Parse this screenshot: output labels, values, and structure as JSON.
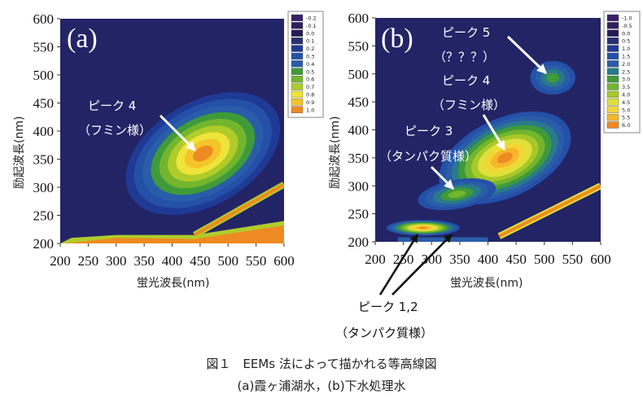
{
  "chart_data": [
    {
      "type": "heatmap",
      "panel_label": "(a)",
      "xlabel": "蛍光波長(nm)",
      "ylabel": "励起波長(nm)",
      "xlim": [
        200,
        600
      ],
      "ylim": [
        200,
        600
      ],
      "xticks": [
        "200",
        "250",
        "300",
        "350",
        "400",
        "450",
        "500",
        "550",
        "600"
      ],
      "yticks": [
        "200",
        "250",
        "300",
        "350",
        "400",
        "450",
        "500",
        "550",
        "600"
      ],
      "legend": {
        "labels": [
          "-0.2",
          "-0.1",
          "0.0",
          "0.1",
          "0.2",
          "0.3",
          "0.4",
          "0.5",
          "0.6",
          "0.7",
          "0.8",
          "0.9",
          "1.0"
        ],
        "colors": [
          "#3a1f6b",
          "#2e1f5e",
          "#231d55",
          "#28306e",
          "#1f3a95",
          "#2450a8",
          "#2a5da8",
          "#3f9a3a",
          "#74b52e",
          "#b0cc2a",
          "#efe43a",
          "#f5c42b",
          "#ee8a22"
        ]
      },
      "peaks": [
        {
          "name": "ピーク 4",
          "sub": "(フミン様)",
          "em": 455,
          "ex": 360,
          "level": 1.0
        }
      ]
    },
    {
      "type": "heatmap",
      "panel_label": "(b)",
      "xlabel": "蛍光波長(nm)",
      "ylabel": "励起波長(nm)",
      "xlim": [
        200,
        600
      ],
      "ylim": [
        200,
        600
      ],
      "xticks": [
        "200",
        "250",
        "300",
        "350",
        "400",
        "450",
        "500",
        "550",
        "600"
      ],
      "yticks": [
        "200",
        "250",
        "300",
        "350",
        "400",
        "450",
        "500",
        "550",
        "600"
      ],
      "legend": {
        "labels": [
          "-1.0",
          "-0.5",
          "0.0",
          "0.5",
          "1.0",
          "1.5",
          "2.0",
          "2.5",
          "3.0",
          "3.5",
          "4.0",
          "4.5",
          "5.0",
          "5.5",
          "6.0"
        ],
        "colors": [
          "#3a1f6b",
          "#2e1f5e",
          "#231d55",
          "#28306e",
          "#1f3a95",
          "#2450a8",
          "#2a5da8",
          "#2a7a8a",
          "#3f9a3a",
          "#74b52e",
          "#a8c82a",
          "#dfe03a",
          "#f2d636",
          "#f5b82b",
          "#ee8a22"
        ]
      },
      "peaks": [
        {
          "name": "ピーク 5",
          "sub": "(？？？)",
          "em": 515,
          "ex": 493,
          "level": 3.0
        },
        {
          "name": "ピーク 4",
          "sub": "(フミン様)",
          "em": 430,
          "ex": 350,
          "level": 6.0
        },
        {
          "name": "ピーク 3",
          "sub": "(タンパク質様)",
          "em": 345,
          "ex": 285,
          "level": 3.5
        },
        {
          "name": "ピーク 1,2",
          "sub": "(タンパク質様)",
          "em": 285,
          "ex": 225,
          "level": 6.0
        }
      ]
    }
  ],
  "annotations": {
    "a_peak4_line1": "ピーク 4",
    "a_peak4_line2": "（フミン様）",
    "b_peak5_line1": "ピーク 5",
    "b_peak5_line2": "（？？？）",
    "b_peak4_line1": "ピーク 4",
    "b_peak4_line2": "（フミン様）",
    "b_peak3_line1": "ピーク 3",
    "b_peak3_line2": "（タンパク質様）",
    "b_peak12_line1": "ピーク 1,2",
    "b_peak12_line2": "（タンパク質様）"
  },
  "caption": {
    "line1": "図１　EEMs 法によって描かれる等高線図",
    "line2": "(a)霞ヶ浦湖水，(b)下水処理水"
  },
  "colors": {
    "background": "#232466",
    "white_arrow": "#ffffff",
    "black_arrow": "#111111"
  }
}
